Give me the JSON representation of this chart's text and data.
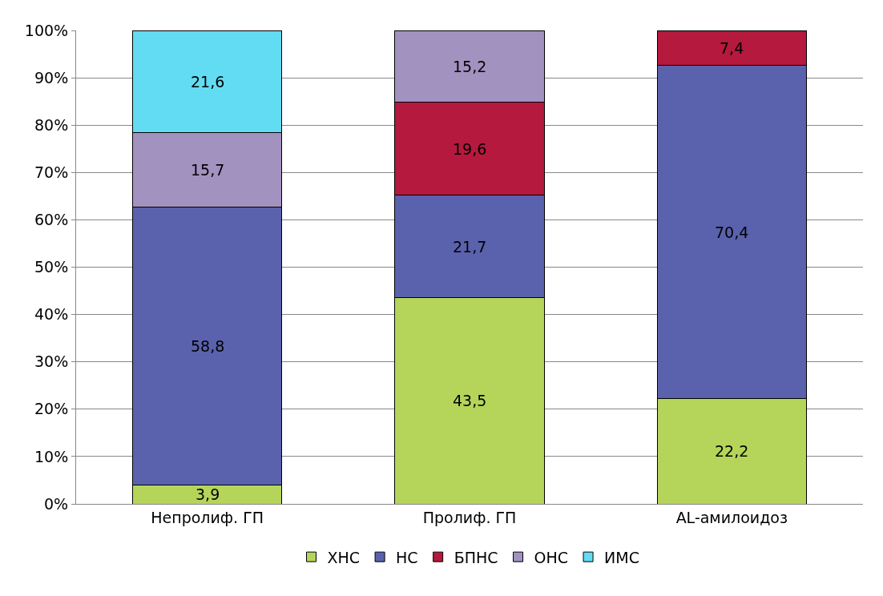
{
  "chart_data": {
    "type": "bar",
    "stacked": true,
    "categories": [
      "Непролиф. ГП",
      "Пролиф. ГП",
      "AL-амилоидоз"
    ],
    "series": [
      {
        "name": "ХНС",
        "color": "#b5d55a",
        "values": [
          3.9,
          43.5,
          22.2
        ],
        "value_labels": [
          "3,9",
          "43,5",
          "22,2"
        ]
      },
      {
        "name": "НС",
        "color": "#5a62ad",
        "values": [
          58.8,
          21.7,
          70.4
        ],
        "value_labels": [
          "58,8",
          "21,7",
          "70,4"
        ]
      },
      {
        "name": "БПНС",
        "color": "#b5193e",
        "values": [
          null,
          19.6,
          7.4
        ],
        "value_labels": [
          null,
          "19,6",
          "7,4"
        ]
      },
      {
        "name": "ОНС",
        "color": "#a292c0",
        "values": [
          15.7,
          15.2,
          null
        ],
        "value_labels": [
          "15,7",
          "15,2",
          null
        ]
      },
      {
        "name": "ИМС",
        "color": "#62dcf2",
        "values": [
          21.6,
          null,
          null
        ],
        "value_labels": [
          "21,6",
          null,
          null
        ]
      }
    ],
    "ylim": [
      0,
      100
    ],
    "yticks": [
      {
        "value": 0,
        "label": "0%"
      },
      {
        "value": 10,
        "label": "10%"
      },
      {
        "value": 20,
        "label": "20%"
      },
      {
        "value": 30,
        "label": "30%"
      },
      {
        "value": 40,
        "label": "40%"
      },
      {
        "value": 50,
        "label": "50%"
      },
      {
        "value": 60,
        "label": "60%"
      },
      {
        "value": 70,
        "label": "70%"
      },
      {
        "value": 80,
        "label": "80%"
      },
      {
        "value": 90,
        "label": "90%"
      },
      {
        "value": 100,
        "label": "100%"
      }
    ],
    "grid": "y",
    "legend": "bottom"
  }
}
